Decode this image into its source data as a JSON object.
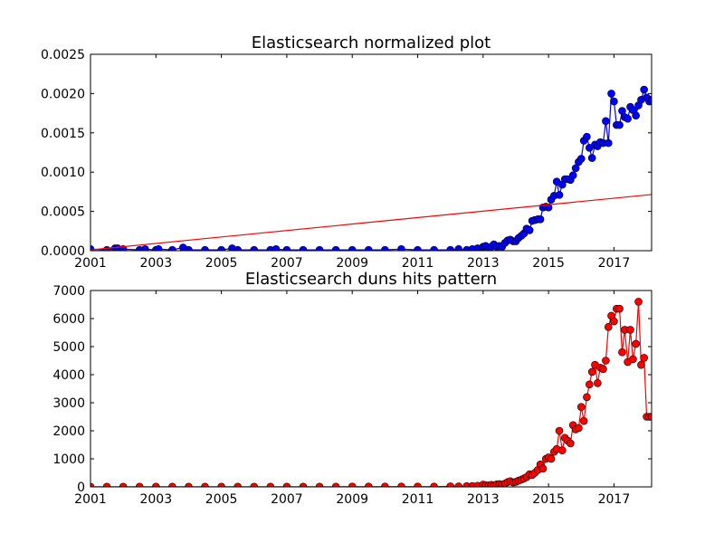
{
  "chart_data": [
    {
      "type": "line",
      "title": "Elasticsearch normalized plot",
      "xlabel": "",
      "ylabel": "",
      "xlim": [
        2001.0,
        2018.15
      ],
      "ylim": [
        0,
        0.0025
      ],
      "xticks": [
        2001,
        2003,
        2005,
        2007,
        2009,
        2011,
        2013,
        2015,
        2017
      ],
      "xtick_labels": [
        "2001",
        "2003",
        "2005",
        "2007",
        "2009",
        "2011",
        "2013",
        "2015",
        "2017"
      ],
      "yticks": [
        0,
        0.0005,
        0.001,
        0.0015,
        0.002,
        0.0025
      ],
      "ytick_labels": [
        "0.0000",
        "0.0005",
        "0.0010",
        "0.0015",
        "0.0020",
        "0.0025"
      ],
      "grid": false,
      "series": [
        {
          "name": "",
          "color": "#0000ff",
          "marker": "circle",
          "x": [
            2001.0,
            2001.5,
            2001.75,
            2001.83,
            2002.0,
            2002.5,
            2002.67,
            2003.0,
            2003.08,
            2003.5,
            2003.83,
            2004.0,
            2004.5,
            2005.0,
            2005.33,
            2005.5,
            2006.0,
            2006.5,
            2006.67,
            2007.0,
            2007.5,
            2008.0,
            2008.5,
            2009.0,
            2009.5,
            2010.0,
            2010.5,
            2011.0,
            2011.5,
            2012.0,
            2012.25,
            2012.5,
            2012.67,
            2012.83,
            2013.0,
            2013.08,
            2013.17,
            2013.25,
            2013.33,
            2013.42,
            2013.5,
            2013.58,
            2013.67,
            2013.75,
            2013.83,
            2013.92,
            2014.0,
            2014.08,
            2014.17,
            2014.25,
            2014.33,
            2014.42,
            2014.5,
            2014.58,
            2014.67,
            2014.75,
            2014.83,
            2014.92,
            2015.0,
            2015.08,
            2015.17,
            2015.25,
            2015.33,
            2015.42,
            2015.5,
            2015.58,
            2015.67,
            2015.75,
            2015.83,
            2015.92,
            2016.0,
            2016.08,
            2016.17,
            2016.25,
            2016.33,
            2016.42,
            2016.5,
            2016.58,
            2016.67,
            2016.75,
            2016.83,
            2016.92,
            2017.0,
            2017.08,
            2017.17,
            2017.25,
            2017.33,
            2017.42,
            2017.5,
            2017.58,
            2017.67,
            2017.75,
            2017.83,
            2017.92,
            2018.0,
            2018.08,
            2018.15
          ],
          "y": [
            2e-05,
            1e-05,
            3e-05,
            3e-05,
            2e-05,
            1e-05,
            2e-05,
            1e-05,
            2e-05,
            1e-05,
            4e-05,
            1e-05,
            1e-05,
            1e-05,
            3e-05,
            1e-05,
            1e-05,
            1e-05,
            2e-05,
            1e-05,
            1e-05,
            1e-05,
            1e-05,
            1e-05,
            1e-05,
            1e-05,
            2e-05,
            1e-05,
            1e-05,
            1e-05,
            2e-05,
            1e-05,
            2e-05,
            3e-05,
            5e-05,
            6e-05,
            4e-05,
            5e-05,
            8e-05,
            5e-05,
            6e-05,
            5e-05,
            0.0001,
            0.00013,
            0.00014,
            0.00012,
            0.00012,
            0.00016,
            0.00019,
            0.00022,
            0.00028,
            0.00026,
            0.00038,
            0.00039,
            0.0004,
            0.0004,
            0.00055,
            0.00056,
            0.00055,
            0.00065,
            0.0007,
            0.00088,
            0.00071,
            0.00084,
            0.00091,
            0.00091,
            0.0009,
            0.00096,
            0.00105,
            0.00113,
            0.00117,
            0.0014,
            0.00145,
            0.00131,
            0.00118,
            0.00135,
            0.00133,
            0.00138,
            0.00137,
            0.00165,
            0.00137,
            0.002,
            0.0019,
            0.0016,
            0.0016,
            0.00178,
            0.0017,
            0.00168,
            0.00183,
            0.00179,
            0.00172,
            0.00185,
            0.00192,
            0.00205,
            0.00195,
            0.0019,
            0.00192
          ]
        },
        {
          "name": "",
          "color": "#ff0000",
          "marker": "none",
          "x": [
            2001.0,
            2018.15
          ],
          "y": [
            1e-05,
            0.000715
          ]
        }
      ]
    },
    {
      "type": "line",
      "title": "Elasticsearch duns hits pattern",
      "xlabel": "",
      "ylabel": "",
      "xlim": [
        2001.0,
        2018.15
      ],
      "ylim": [
        0,
        7000
      ],
      "xticks": [
        2001,
        2003,
        2005,
        2007,
        2009,
        2011,
        2013,
        2015,
        2017
      ],
      "xtick_labels": [
        "2001",
        "2003",
        "2005",
        "2007",
        "2009",
        "2011",
        "2013",
        "2015",
        "2017"
      ],
      "yticks": [
        0,
        1000,
        2000,
        3000,
        4000,
        5000,
        6000,
        7000
      ],
      "ytick_labels": [
        "0",
        "1000",
        "2000",
        "3000",
        "4000",
        "5000",
        "6000",
        "7000"
      ],
      "grid": false,
      "series": [
        {
          "name": "",
          "color": "#ff0000",
          "marker": "circle",
          "x": [
            2001.0,
            2001.5,
            2002.0,
            2002.5,
            2003.0,
            2003.5,
            2004.0,
            2004.5,
            2005.0,
            2005.5,
            2006.0,
            2006.5,
            2007.0,
            2007.5,
            2008.0,
            2008.5,
            2009.0,
            2009.5,
            2010.0,
            2010.5,
            2011.0,
            2011.5,
            2012.0,
            2012.25,
            2012.5,
            2012.67,
            2012.83,
            2013.0,
            2013.08,
            2013.17,
            2013.25,
            2013.33,
            2013.42,
            2013.5,
            2013.58,
            2013.67,
            2013.75,
            2013.83,
            2013.92,
            2014.0,
            2014.08,
            2014.17,
            2014.25,
            2014.33,
            2014.42,
            2014.5,
            2014.58,
            2014.67,
            2014.75,
            2014.83,
            2014.92,
            2015.0,
            2015.08,
            2015.17,
            2015.25,
            2015.33,
            2015.42,
            2015.5,
            2015.58,
            2015.67,
            2015.75,
            2015.83,
            2015.92,
            2016.0,
            2016.08,
            2016.17,
            2016.25,
            2016.33,
            2016.42,
            2016.5,
            2016.58,
            2016.67,
            2016.75,
            2016.83,
            2016.92,
            2017.0,
            2017.08,
            2017.17,
            2017.25,
            2017.33,
            2017.42,
            2017.5,
            2017.58,
            2017.67,
            2017.75,
            2017.83,
            2017.92,
            2018.0,
            2018.08,
            2018.15
          ],
          "y": [
            5,
            5,
            5,
            5,
            5,
            5,
            5,
            5,
            5,
            5,
            5,
            5,
            5,
            5,
            5,
            5,
            10,
            10,
            10,
            10,
            10,
            10,
            20,
            15,
            25,
            30,
            40,
            80,
            60,
            50,
            70,
            60,
            90,
            100,
            80,
            120,
            170,
            200,
            160,
            180,
            220,
            260,
            300,
            350,
            450,
            420,
            500,
            600,
            800,
            650,
            1000,
            1050,
            1000,
            1250,
            1350,
            2000,
            1300,
            1750,
            1650,
            1550,
            2200,
            2050,
            2100,
            2850,
            2350,
            3200,
            3650,
            4100,
            4350,
            3700,
            4250,
            4200,
            4500,
            5700,
            6100,
            5900,
            6350,
            6350,
            4800,
            5600,
            4450,
            5600,
            4550,
            5100,
            6600,
            4350,
            4600,
            2500,
            2500,
            2500
          ]
        }
      ]
    }
  ]
}
